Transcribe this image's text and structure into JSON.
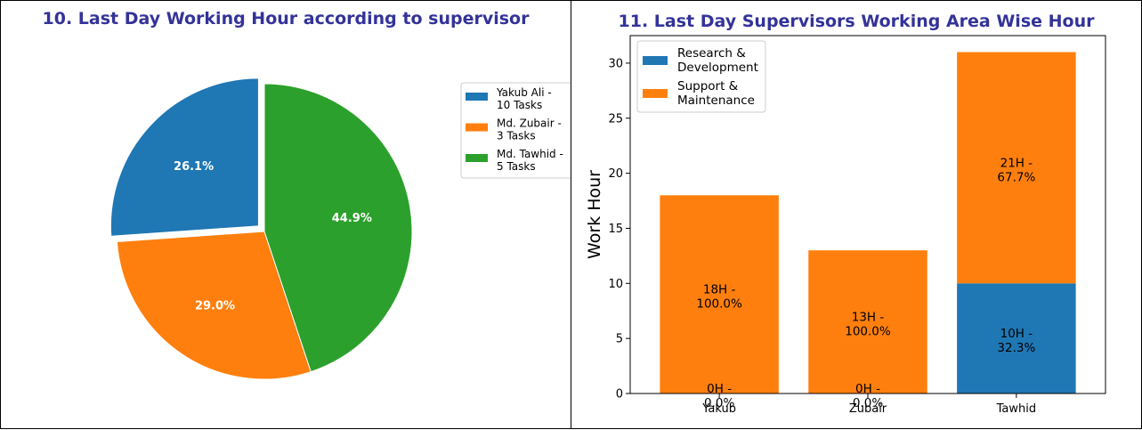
{
  "colors": {
    "title": "#333399",
    "blue": "#1f77b4",
    "orange": "#ff7f0e",
    "green": "#2ca02c",
    "label_light": "#ffffff",
    "label_dark": "#000000"
  },
  "chart_data": [
    {
      "type": "pie",
      "title": "10. Last Day Working Hour according to supervisor",
      "slices": [
        {
          "legend": [
            "Yakub Ali -",
            "10 Tasks"
          ],
          "value": 26.1,
          "label": "26.1%",
          "color": "#1f77b4",
          "exploded": true
        },
        {
          "legend": [
            "Md. Zubair -",
            "3 Tasks"
          ],
          "value": 29.0,
          "label": "29.0%",
          "color": "#ff7f0e",
          "exploded": false
        },
        {
          "legend": [
            "Md. Tawhid -",
            "5 Tasks"
          ],
          "value": 44.9,
          "label": "44.9%",
          "color": "#2ca02c",
          "exploded": false
        }
      ],
      "start_angle_deg": 90,
      "legend_position": "right"
    },
    {
      "type": "bar",
      "stacked": true,
      "title": "11. Last Day Supervisors Working Area Wise Hour",
      "categories": [
        "Yakub",
        "Zubair",
        "Tawhid"
      ],
      "ylabel": "Work Hour",
      "ylim": [
        0,
        32.5
      ],
      "yticks": [
        0,
        5,
        10,
        15,
        20,
        25,
        30
      ],
      "series": [
        {
          "name": [
            "Research &",
            "Development"
          ],
          "color": "#1f77b4",
          "values": [
            0,
            0,
            10
          ],
          "labels": [
            [
              "0H -",
              "0.0%"
            ],
            [
              "0H -",
              "0.0%"
            ],
            [
              "10H -",
              "32.3%"
            ]
          ]
        },
        {
          "name": [
            "Support &",
            "Maintenance"
          ],
          "color": "#ff7f0e",
          "values": [
            18,
            13,
            21
          ],
          "labels": [
            [
              "18H -",
              "100.0%"
            ],
            [
              "13H -",
              "100.0%"
            ],
            [
              "21H -",
              "67.7%"
            ]
          ]
        }
      ],
      "legend_position": "upper-left"
    }
  ]
}
